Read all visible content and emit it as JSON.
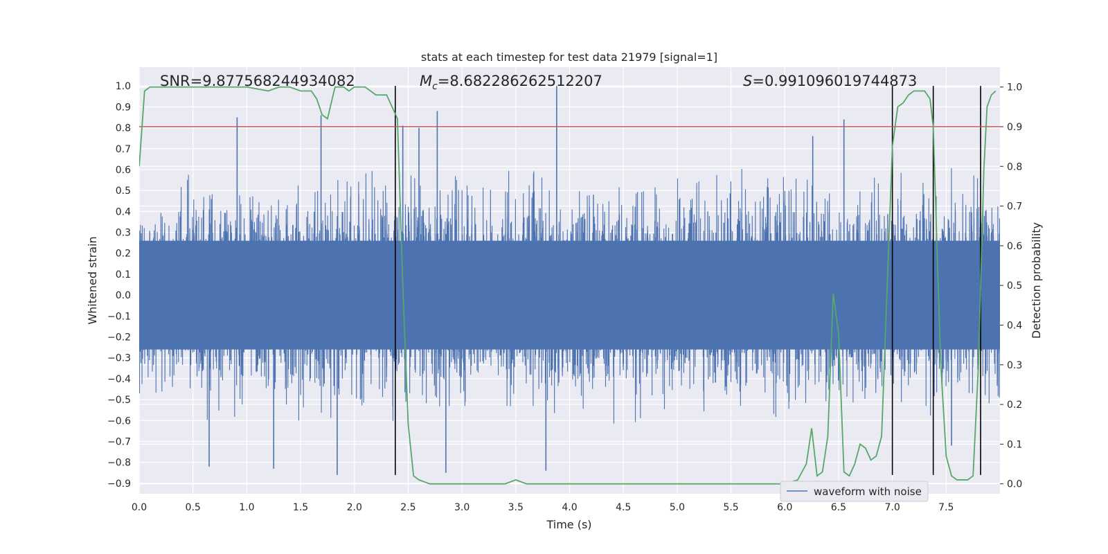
{
  "chart_data": {
    "type": "line",
    "title": "stats at each timestep for test data 21979 [signal=1]",
    "xlabel": "Time (s)",
    "ylabel": "Whitened strain",
    "y2label": "Detection probability",
    "xlim": [
      0.0,
      8.0
    ],
    "ylim": [
      -0.95,
      1.09
    ],
    "y2lim": [
      -0.025,
      1.05
    ],
    "x_ticks": [
      0.0,
      0.5,
      1.0,
      1.5,
      2.0,
      2.5,
      3.0,
      3.5,
      4.0,
      4.5,
      5.0,
      5.5,
      6.0,
      6.5,
      7.0,
      7.5
    ],
    "x_tick_labels": [
      "0.0",
      "0.5",
      "1.0",
      "1.5",
      "2.0",
      "2.5",
      "3.0",
      "3.5",
      "4.0",
      "4.5",
      "5.0",
      "5.5",
      "6.0",
      "6.5",
      "7.0",
      "7.5"
    ],
    "y_ticks": [
      1.0,
      0.9,
      0.8,
      0.7,
      0.6,
      0.5,
      0.4,
      0.3,
      0.2,
      0.1,
      0.0,
      -0.1,
      -0.2,
      -0.3,
      -0.4,
      -0.5,
      -0.6,
      -0.7,
      -0.8,
      -0.9
    ],
    "y_tick_labels": [
      "1.0",
      "0.9",
      "0.8",
      "0.7",
      "0.6",
      "0.5",
      "0.4",
      "0.3",
      "0.2",
      "0.1",
      "0.0",
      "−0.1",
      "−0.2",
      "−0.3",
      "−0.4",
      "−0.5",
      "−0.6",
      "−0.7",
      "−0.8",
      "−0.9"
    ],
    "y2_ticks": [
      1.0,
      0.9,
      0.8,
      0.7,
      0.6,
      0.5,
      0.4,
      0.3,
      0.2,
      0.1,
      0.0
    ],
    "y2_tick_labels": [
      "1.0",
      "0.9",
      "0.8",
      "0.7",
      "0.6",
      "0.5",
      "0.4",
      "0.3",
      "0.2",
      "0.1",
      "0.0"
    ],
    "grid": true,
    "legend_position": "bottom-right",
    "annotations": {
      "snr": "SNR=9.877568244934082",
      "mc_symbol": "M",
      "mc_sub": "c",
      "mc_value": "=8.682286262512207",
      "s_symbol": "S",
      "s_value": "=0.991096019744873"
    },
    "threshold": {
      "axis": "y2",
      "value": 0.9,
      "color": "#c44e52"
    },
    "event_lines": {
      "x": [
        2.38,
        7.0,
        7.38,
        7.82
      ],
      "ymin": -0.86,
      "ymax": 1.0,
      "color": "#000000"
    },
    "series": [
      {
        "name": "waveform with noise",
        "axis": "y",
        "color": "#4c72b0",
        "style": "dense-noise",
        "t_range": [
          0.0,
          8.0
        ],
        "n_samples": 8000,
        "core_amplitude": 0.26,
        "typical_peak": 0.52,
        "max_value": 1.0,
        "min_value": -0.87,
        "peaks": [
          {
            "x": 0.91,
            "y": 0.85
          },
          {
            "x": 1.69,
            "y": 0.86
          },
          {
            "x": 1.84,
            "y": -0.86
          },
          {
            "x": 2.45,
            "y": 0.81
          },
          {
            "x": 2.6,
            "y": 0.8
          },
          {
            "x": 2.77,
            "y": 0.88
          },
          {
            "x": 2.85,
            "y": -0.85
          },
          {
            "x": 3.88,
            "y": 1.0
          },
          {
            "x": 3.78,
            "y": -0.84
          },
          {
            "x": 6.55,
            "y": 0.84
          },
          {
            "x": 6.26,
            "y": 0.76
          },
          {
            "x": 1.25,
            "y": -0.83
          },
          {
            "x": 0.65,
            "y": -0.82
          },
          {
            "x": 7.55,
            "y": -0.72
          }
        ]
      },
      {
        "name": "",
        "axis": "y2",
        "color": "#55a868",
        "x": [
          0.0,
          0.05,
          0.1,
          0.2,
          0.4,
          0.6,
          0.8,
          1.0,
          1.2,
          1.3,
          1.4,
          1.5,
          1.6,
          1.65,
          1.7,
          1.75,
          1.82,
          1.9,
          1.95,
          2.0,
          2.1,
          2.2,
          2.3,
          2.35,
          2.4,
          2.45,
          2.5,
          2.55,
          2.6,
          2.7,
          2.8,
          3.0,
          3.2,
          3.4,
          3.5,
          3.6,
          3.8,
          4.0,
          4.2,
          4.3,
          4.4,
          4.6,
          5.0,
          5.5,
          6.0,
          6.12,
          6.2,
          6.25,
          6.3,
          6.35,
          6.4,
          6.45,
          6.5,
          6.55,
          6.6,
          6.65,
          6.7,
          6.75,
          6.8,
          6.85,
          6.9,
          7.0,
          7.05,
          7.1,
          7.15,
          7.2,
          7.25,
          7.3,
          7.35,
          7.38,
          7.42,
          7.45,
          7.5,
          7.55,
          7.6,
          7.65,
          7.7,
          7.75,
          7.8,
          7.85,
          7.88,
          7.92,
          7.96
        ],
        "y": [
          0.8,
          0.99,
          1.0,
          1.0,
          1.0,
          1.0,
          1.0,
          1.0,
          0.99,
          1.0,
          1.0,
          0.99,
          0.99,
          0.97,
          0.93,
          0.92,
          1.0,
          1.0,
          0.99,
          1.0,
          1.0,
          0.98,
          0.98,
          0.95,
          0.92,
          0.5,
          0.15,
          0.02,
          0.01,
          0.0,
          0.0,
          0.0,
          0.0,
          0.0,
          0.01,
          0.0,
          0.0,
          0.0,
          0.0,
          0.0,
          0.0,
          0.0,
          0.0,
          0.0,
          0.0,
          0.01,
          0.05,
          0.14,
          0.02,
          0.03,
          0.12,
          0.48,
          0.38,
          0.03,
          0.02,
          0.05,
          0.1,
          0.09,
          0.06,
          0.07,
          0.12,
          0.85,
          0.95,
          0.96,
          0.98,
          0.99,
          0.99,
          0.99,
          0.97,
          0.9,
          0.55,
          0.3,
          0.07,
          0.02,
          0.01,
          0.01,
          0.01,
          0.02,
          0.3,
          0.79,
          0.95,
          0.98,
          0.99
        ]
      }
    ]
  }
}
